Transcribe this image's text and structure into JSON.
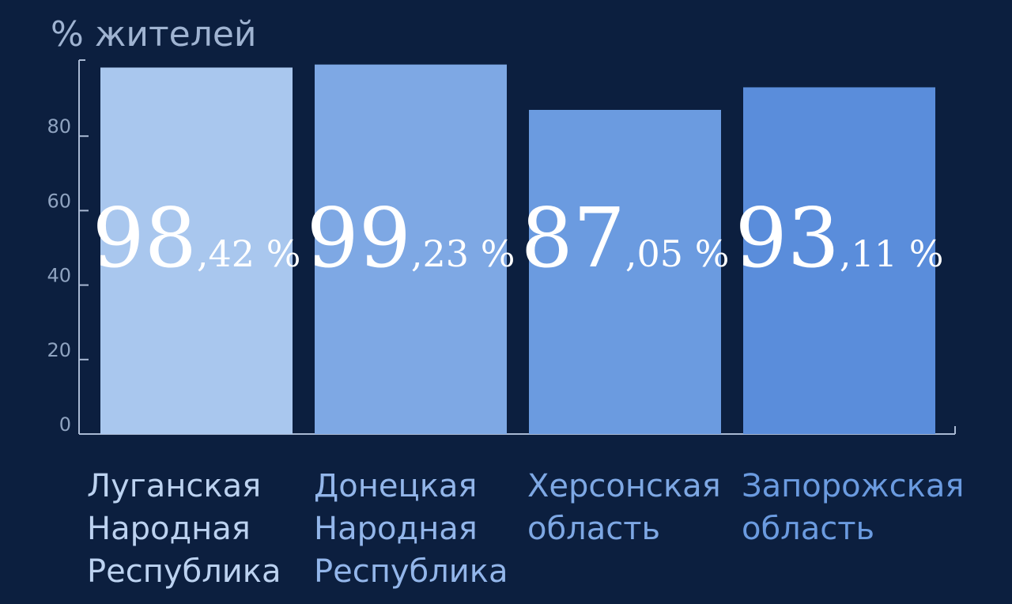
{
  "chart_data": {
    "type": "bar",
    "ylabel": "% жителей",
    "categories": [
      "Луганская\nНародная\nРеспублика",
      "Донецкая\nНародная\nРеспублика",
      "Херсонская\nобласть",
      "Запорожская\nобласть"
    ],
    "values": [
      98.42,
      99.23,
      87.05,
      93.11
    ],
    "data_labels": [
      {
        "int": "98",
        "dec": ",42 %"
      },
      {
        "int": "99",
        "dec": ",23 %"
      },
      {
        "int": "87",
        "dec": ",05 %"
      },
      {
        "int": "93",
        "dec": ",11 %"
      }
    ],
    "yticks": [
      "0",
      "20",
      "40",
      "60",
      "80"
    ],
    "ylim": [
      0,
      100
    ],
    "grid": false,
    "legend": "none",
    "colors": {
      "background": "#0c1f3f",
      "bars": [
        "#a9c7ee",
        "#7ea8e4",
        "#6b9be0",
        "#5a8ddb"
      ],
      "labels": [
        "#bcd2f0",
        "#93b6ea",
        "#7ea8e4",
        "#6b9be0"
      ],
      "axis": "#a9b9d3"
    }
  }
}
